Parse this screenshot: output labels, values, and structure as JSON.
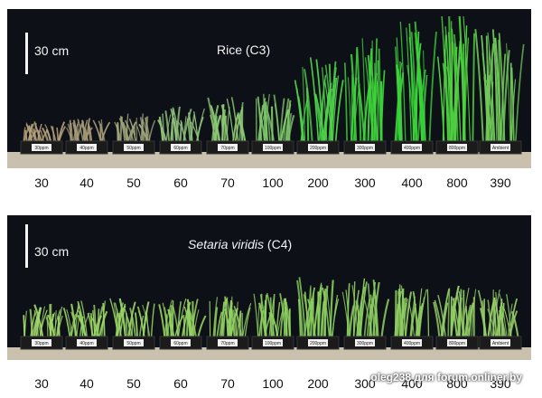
{
  "panels": [
    {
      "id": "top",
      "scale_label": "30 cm",
      "title_main": "Rice (C3)",
      "title_species": "",
      "title_suffix": "",
      "pots": [
        "30ppm",
        "40ppm",
        "50ppm",
        "60ppm",
        "70ppm",
        "100ppm",
        "200ppm",
        "300ppm",
        "400ppm",
        "800ppm",
        "Ambient"
      ],
      "ticks": [
        "30",
        "40",
        "50",
        "60",
        "70",
        "100",
        "200",
        "300",
        "400",
        "800",
        "390"
      ],
      "growth": [
        0.1,
        0.12,
        0.14,
        0.18,
        0.22,
        0.24,
        0.42,
        0.52,
        0.62,
        0.7,
        0.56
      ],
      "colors": [
        "#b5a27c",
        "#a59a77",
        "#9ea47a",
        "#8fc07a",
        "#8cc873",
        "#7ec86a",
        "#4fd14a",
        "#3fd23c",
        "#3bd33a",
        "#4fd240",
        "#6fc858"
      ]
    },
    {
      "id": "bottom",
      "scale_label": "30 cm",
      "title_main": "",
      "title_species": "Setaria viridis",
      "title_suffix": "(C4)",
      "pots": [
        "30ppm",
        "40ppm",
        "50ppm",
        "60ppm",
        "70ppm",
        "100ppm",
        "200ppm",
        "300ppm",
        "400ppm",
        "800ppm",
        "Ambient"
      ],
      "ticks": [
        "30",
        "40",
        "50",
        "60",
        "70",
        "100",
        "200",
        "300",
        "400",
        "800",
        "390"
      ],
      "growth": [
        0.18,
        0.2,
        0.21,
        0.21,
        0.22,
        0.24,
        0.34,
        0.32,
        0.3,
        0.28,
        0.26
      ],
      "colors": [
        "#9fd868",
        "#9ad666",
        "#98d464",
        "#95d363",
        "#93d262",
        "#8fd160",
        "#8ad05e",
        "#8ccf60",
        "#8fce62",
        "#92cd64",
        "#94cc66"
      ]
    }
  ],
  "watermark": "oleg238 для forum.onliner.by"
}
